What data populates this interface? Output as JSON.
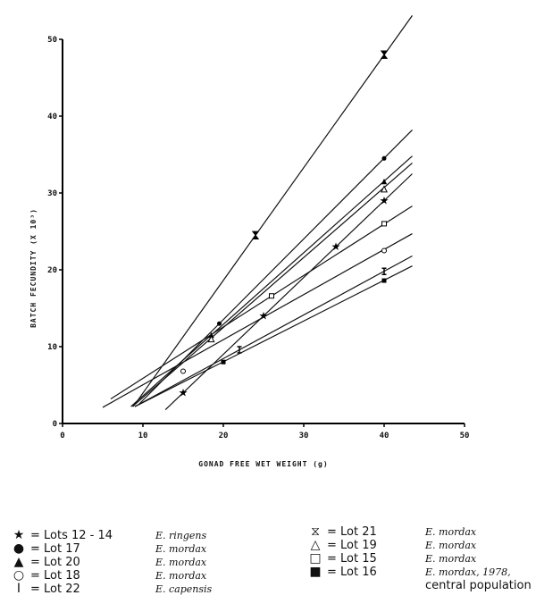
{
  "chart_data": {
    "type": "line",
    "xlabel": "GONAD FREE WET WEIGHT (g)",
    "ylabel": "BATCH FECUNDITY (X 10³)",
    "xlim": [
      0,
      50
    ],
    "ylim": [
      0,
      50
    ],
    "xticks": [
      "0",
      "10",
      "20",
      "30",
      "40",
      "50"
    ],
    "yticks": [
      "0",
      "10",
      "20",
      "30",
      "40",
      "50"
    ],
    "grid": false,
    "series": [
      {
        "name": "Lot 21",
        "marker": "hourglass-open",
        "x": [
          8.8,
          43.5
        ],
        "y": [
          2.2,
          53.1
        ],
        "points": [
          [
            24,
            24.5
          ],
          [
            40,
            48
          ]
        ]
      },
      {
        "name": "Lot 17",
        "marker": "circle-filled",
        "x": [
          9.5,
          43.5
        ],
        "y": [
          2.5,
          38.2
        ],
        "points": [
          [
            19.5,
            13
          ],
          [
            40,
            34.5
          ]
        ]
      },
      {
        "name": "Lots 12 - 14",
        "marker": "star",
        "x": [
          12.8,
          43.5
        ],
        "y": [
          1.8,
          32.5
        ],
        "points": [
          [
            15,
            4
          ],
          [
            25,
            14
          ],
          [
            34,
            23
          ],
          [
            40,
            29
          ]
        ]
      },
      {
        "name": "Lot 20",
        "marker": "triangle-filled",
        "x": [
          8.5,
          43.5
        ],
        "y": [
          2.2,
          34.8
        ],
        "points": [
          [
            18.5,
            11.5
          ],
          [
            40,
            31.5
          ]
        ]
      },
      {
        "name": "Lot 19",
        "marker": "triangle-open",
        "x": [
          8.7,
          43.5
        ],
        "y": [
          2.2,
          33.9
        ],
        "points": [
          [
            18.5,
            11
          ],
          [
            40,
            30.5
          ]
        ]
      },
      {
        "name": "Lot 15",
        "marker": "square-open",
        "x": [
          6,
          43.5
        ],
        "y": [
          3.2,
          28.3
        ],
        "points": [
          [
            26,
            16.6
          ],
          [
            40,
            26
          ]
        ]
      },
      {
        "name": "Lot 18",
        "marker": "circle-open",
        "x": [
          5,
          43.5
        ],
        "y": [
          2.1,
          24.7
        ],
        "points": [
          [
            15,
            6.8
          ],
          [
            40,
            22.5
          ]
        ]
      },
      {
        "name": "Lot 22",
        "marker": "ibeam",
        "x": [
          9,
          43.5
        ],
        "y": [
          2.2,
          21.8
        ],
        "points": [
          [
            22,
            9.6
          ],
          [
            40,
            19.8
          ]
        ]
      },
      {
        "name": "Lot 16",
        "marker": "square-filled",
        "x": [
          9,
          43.5
        ],
        "y": [
          2.2,
          20.5
        ],
        "points": [
          [
            20,
            8
          ],
          [
            40,
            18.6
          ]
        ]
      }
    ]
  },
  "legend": {
    "left": [
      {
        "symbol": "★",
        "lot": "= Lots 12 - 14",
        "species": "E. ringens"
      },
      {
        "symbol": "●",
        "lot": "= Lot 17",
        "species": "E. mordax"
      },
      {
        "symbol": "▲",
        "lot": "= Lot 20",
        "species": "E. mordax"
      },
      {
        "symbol": "○",
        "lot": "= Lot 18",
        "species": "E. mordax"
      },
      {
        "symbol": "Ⅰ",
        "lot": "= Lot 22",
        "species": "E. capensis"
      }
    ],
    "right": [
      {
        "symbol": "⧖",
        "lot": "= Lot 21",
        "species": "E. mordax"
      },
      {
        "symbol": "△",
        "lot": "= Lot 19",
        "species": "E. mordax"
      },
      {
        "symbol": "□",
        "lot": "= Lot 15",
        "species": "E. mordax"
      },
      {
        "symbol": "■",
        "lot": "= Lot 16",
        "species": "E. mordax, 1978,"
      }
    ],
    "extra": "central population"
  }
}
